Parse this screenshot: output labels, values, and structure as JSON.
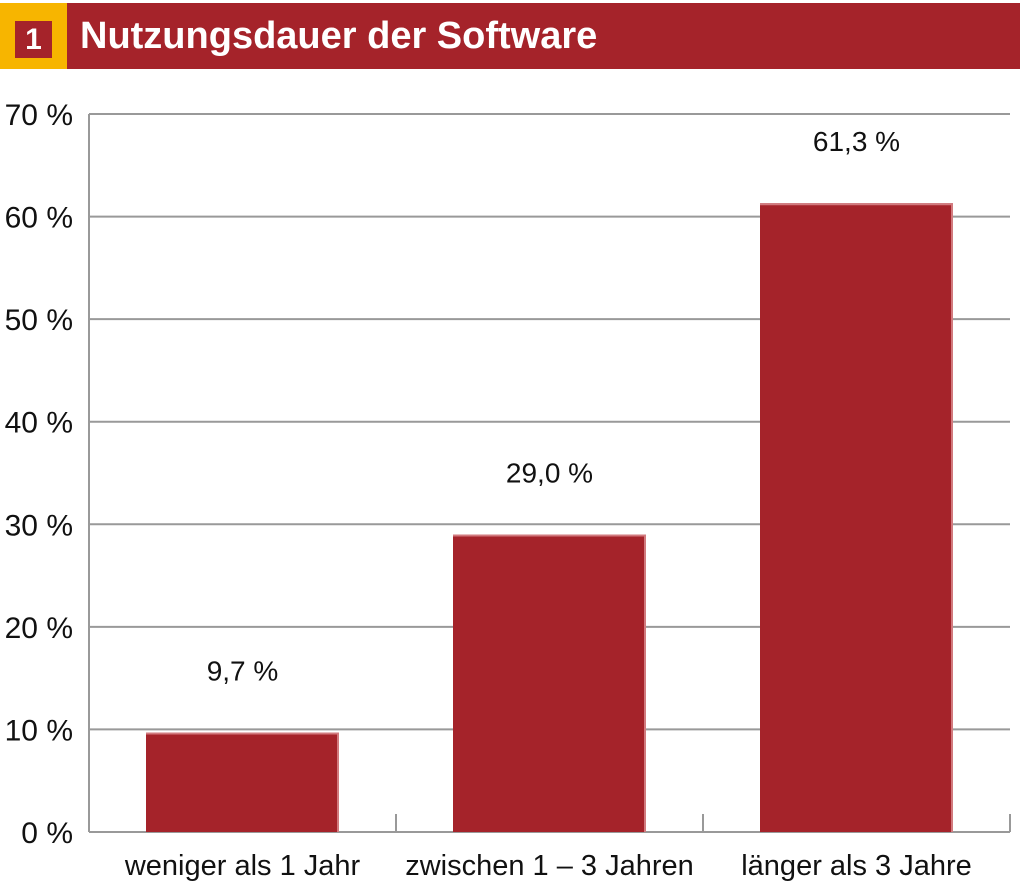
{
  "header": {
    "number": "1",
    "title": "Nutzungsdauer der Software"
  },
  "colors": {
    "bar": "#a5232a",
    "accent": "#f7b500",
    "grid": "#999999"
  },
  "chart_data": {
    "type": "bar",
    "title": "Nutzungsdauer der Software",
    "categories": [
      "weniger als 1 Jahr",
      "zwischen 1 – 3 Jahren",
      "länger als 3 Jahre"
    ],
    "values": [
      9.7,
      29.0,
      61.3
    ],
    "data_labels": [
      "9,7 %",
      "29,0 %",
      "61,3 %"
    ],
    "ylim": [
      0,
      70
    ],
    "yticks": [
      0,
      10,
      20,
      30,
      40,
      50,
      60,
      70
    ],
    "ytick_labels": [
      "0 %",
      "10 %",
      "20 %",
      "30 %",
      "40 %",
      "50 %",
      "60 %",
      "70 %"
    ],
    "xlabel": "",
    "ylabel": "",
    "grid": true
  }
}
